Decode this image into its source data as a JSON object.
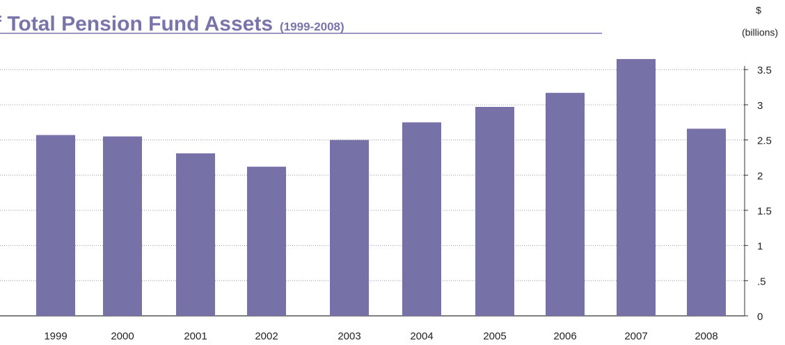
{
  "chart_data": {
    "type": "bar",
    "title": "f Total Pension Fund Assets",
    "subtitle": "(1999-2008)",
    "y_axis_label": [
      "$",
      "(billions)"
    ],
    "categories": [
      "1999",
      "2000",
      "2001",
      "2002",
      "2003",
      "2004",
      "2005",
      "2006",
      "2007",
      "2008"
    ],
    "values": [
      2.57,
      2.55,
      2.31,
      2.12,
      2.5,
      2.75,
      2.97,
      3.17,
      3.65,
      2.66
    ],
    "color": "#7672a8",
    "ylim": [
      0,
      3.7
    ],
    "yticks": [
      0,
      {
        "value": 0.5,
        "label": ".5"
      },
      1,
      1.5,
      2,
      2.5,
      3,
      3.5
    ],
    "grid": true
  }
}
